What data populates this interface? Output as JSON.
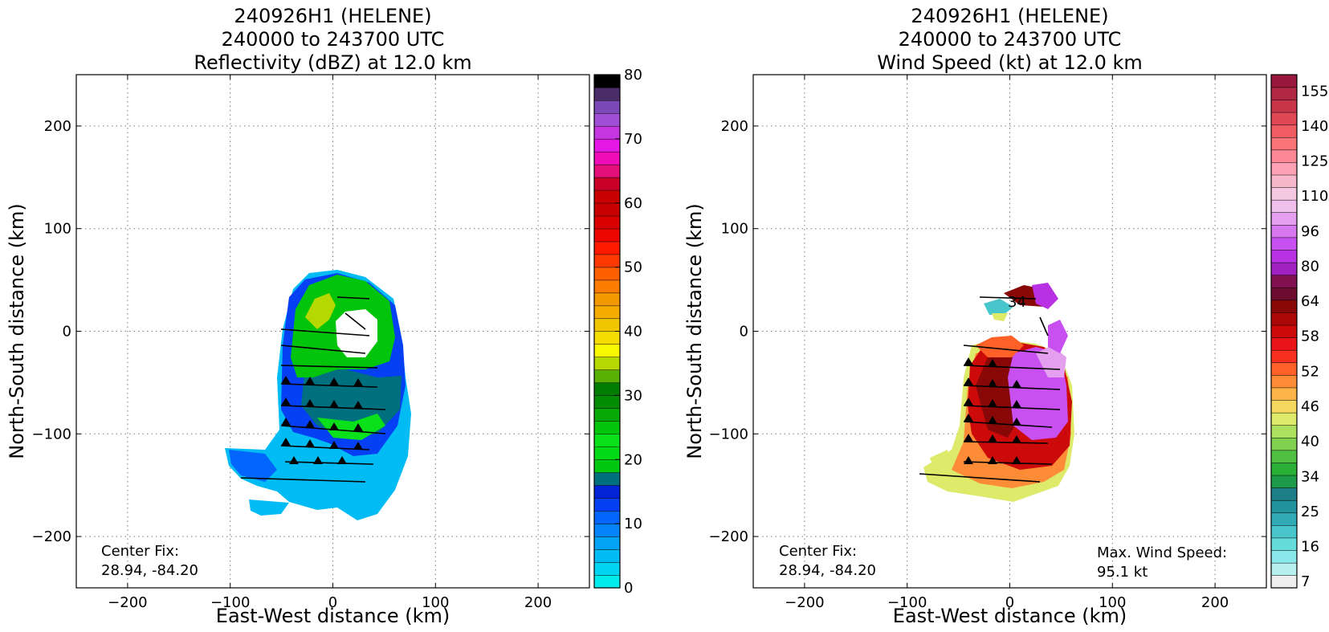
{
  "chart_data": [
    {
      "type": "heatmap",
      "title": [
        "240926H1 (HELENE)",
        "240000 to 243700 UTC",
        "Reflectivity (dBZ) at 12.0 km"
      ],
      "xlabel": "East-West distance (km)",
      "ylabel": "North-South distance (km)",
      "xlim": [
        -250,
        250
      ],
      "ylim": [
        -250,
        250
      ],
      "xticks": [
        -200,
        -100,
        0,
        100,
        200
      ],
      "yticks": [
        -200,
        -100,
        0,
        100,
        200
      ],
      "grid": true,
      "colorbar": {
        "min": 0,
        "max": 80,
        "tick_values": [
          0,
          10,
          20,
          30,
          40,
          50,
          60,
          70,
          80
        ],
        "colors": [
          "#00ecec",
          "#01d4f0",
          "#01bcf4",
          "#02a2f6",
          "#0384fa",
          "#0266fd",
          "#0540f4",
          "#0224d6",
          "#01707e",
          "#00c810",
          "#01da14",
          "#0ae11a",
          "#02c40a",
          "#06a906",
          "#038c03",
          "#017d01",
          "#58b104",
          "#b4d800",
          "#f8f800",
          "#f4dc00",
          "#f0c600",
          "#f4ac00",
          "#f49800",
          "#fa7d00",
          "#fe6000",
          "#ff3a00",
          "#ff1a00",
          "#ec0600",
          "#d80000",
          "#c80000",
          "#c80000",
          "#c80028",
          "#e21078",
          "#f00cb8",
          "#e418e4",
          "#c436e2",
          "#a050d6",
          "#7c4ab8",
          "#4a2c68",
          "#000000"
        ]
      },
      "annotations": [
        "Center Fix:",
        "28.94, -84.20"
      ]
    },
    {
      "type": "heatmap",
      "title": [
        "240926H1 (HELENE)",
        "240000 to 243700 UTC",
        "Wind Speed (kt) at 12.0 km"
      ],
      "xlabel": "East-West distance (km)",
      "ylabel": "North-South distance (km)",
      "xlim": [
        -250,
        250
      ],
      "ylim": [
        -250,
        250
      ],
      "xticks": [
        -200,
        -100,
        0,
        100,
        200
      ],
      "yticks": [
        -200,
        -100,
        0,
        100,
        200
      ],
      "grid": true,
      "colorbar": {
        "tick_labels": [
          "7",
          "16",
          "25",
          "34",
          "40",
          "46",
          "52",
          "58",
          "64",
          "80",
          "96",
          "110",
          "125",
          "140",
          "155"
        ],
        "colors": [
          "#eeeeee",
          "#b8f0f0",
          "#8ae8ea",
          "#64dcdc",
          "#48c6cc",
          "#30aab4",
          "#22929e",
          "#1e7e88",
          "#1c9c48",
          "#2ab036",
          "#50c042",
          "#82d050",
          "#aee060",
          "#ddea6a",
          "#f4d860",
          "#fcb448",
          "#fe8c36",
          "#fe6028",
          "#f83020",
          "#e81418",
          "#cc0a0a",
          "#ac0808",
          "#880808",
          "#6c0c2e",
          "#801050",
          "#a020c0",
          "#b832e4",
          "#c850f0",
          "#d878f0",
          "#e4a0ee",
          "#f0c0ec",
          "#f4c8e0",
          "#f8b8cc",
          "#fca2b4",
          "#fc8896",
          "#fa7478",
          "#f05c64",
          "#e04856",
          "#c83448",
          "#b02844",
          "#98183e"
        ]
      },
      "labels": [
        "34"
      ],
      "annotations": [
        "Center Fix:",
        "28.94, -84.20",
        "Max. Wind Speed:",
        "95.1 kt"
      ]
    }
  ]
}
